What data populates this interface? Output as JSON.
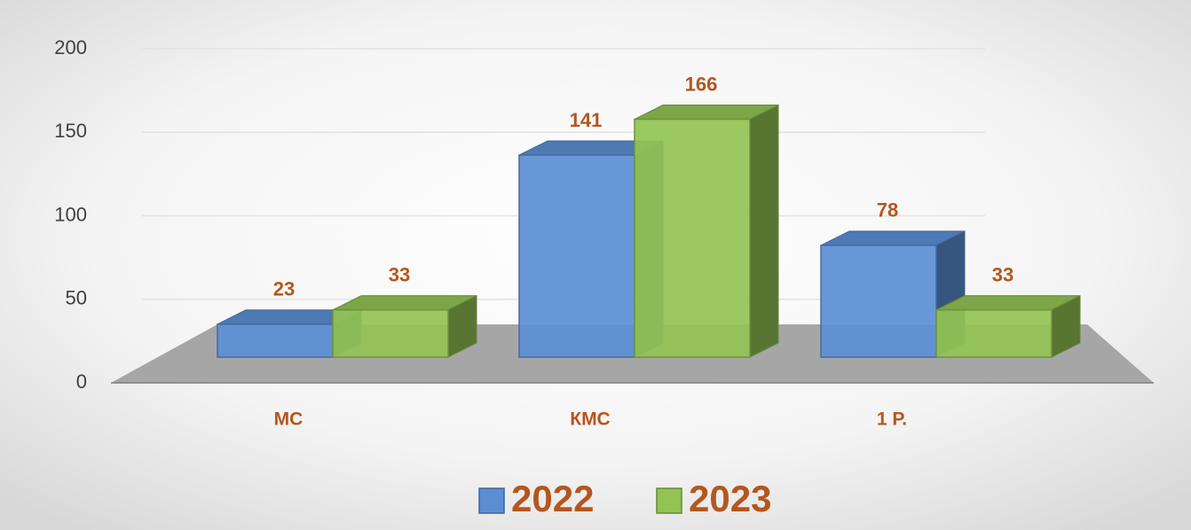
{
  "chart_data": {
    "type": "bar3d",
    "categories": [
      "MC",
      "КМС",
      "1 Р."
    ],
    "series": [
      {
        "name": "2022",
        "color": "#5b8fd4",
        "values": [
          23,
          141,
          78
        ]
      },
      {
        "name": "2023",
        "color": "#92c353",
        "values": [
          33,
          166,
          33
        ]
      }
    ],
    "ylim": [
      0,
      200
    ],
    "yticks": [
      0,
      50,
      100,
      150,
      200
    ],
    "grid": true,
    "label_color": "#b5561d",
    "legend": "bottom"
  }
}
